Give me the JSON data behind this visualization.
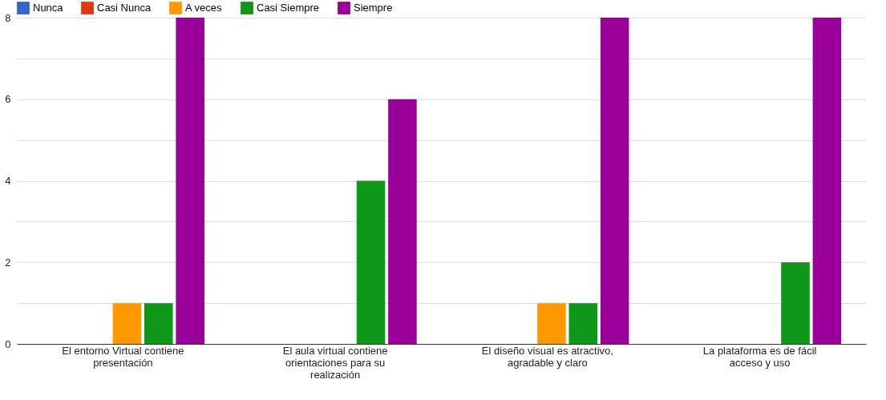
{
  "chart_data": {
    "type": "bar",
    "categories": [
      "El entorno Virtual contiene presentación",
      "El aula virtual contiene orientaciones para su realización",
      "El diseño visual es atractivo, agradable y claro",
      "La plataforma es de fácil acceso y uso"
    ],
    "series": [
      {
        "name": "Nunca",
        "color": "#3366cc",
        "values": [
          0,
          0,
          0,
          0
        ]
      },
      {
        "name": "Casi Nunca",
        "color": "#dc3912",
        "values": [
          0,
          0,
          0,
          0
        ]
      },
      {
        "name": "A veces",
        "color": "#ff9900",
        "values": [
          1,
          0,
          1,
          0
        ]
      },
      {
        "name": "Casi Siempre",
        "color": "#109618",
        "values": [
          1,
          4,
          1,
          2
        ]
      },
      {
        "name": "Siempre",
        "color": "#990099",
        "values": [
          8,
          6,
          8,
          8
        ]
      }
    ],
    "ylim": [
      0,
      8
    ],
    "yticks": [
      0,
      {
        "value": 1,
        "label": null
      },
      2,
      {
        "value": 3,
        "label": null
      },
      4,
      {
        "value": 5,
        "label": null
      },
      6,
      {
        "value": 7,
        "label": null
      },
      8
    ],
    "grid": "y",
    "legend": "top left"
  }
}
